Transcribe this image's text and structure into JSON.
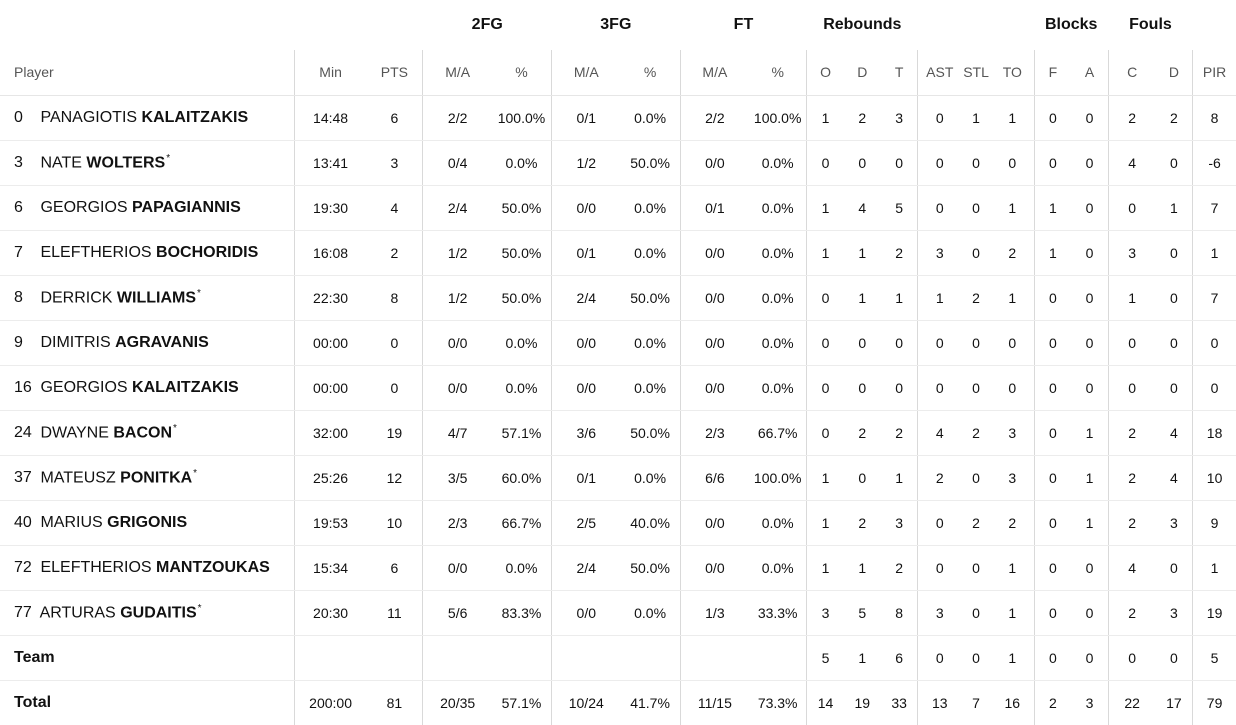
{
  "groups": {
    "fg2": "2FG",
    "fg3": "3FG",
    "ft": "FT",
    "rebounds": "Rebounds",
    "blocks": "Blocks",
    "fouls": "Fouls"
  },
  "headers": {
    "player": "Player",
    "min": "Min",
    "pts": "PTS",
    "fg2_ma": "M/A",
    "fg2_pct": "%",
    "fg3_ma": "M/A",
    "fg3_pct": "%",
    "ft_ma": "M/A",
    "ft_pct": "%",
    "reb_o": "O",
    "reb_d": "D",
    "reb_t": "T",
    "ast": "AST",
    "stl": "STL",
    "to": "TO",
    "blk_f": "F",
    "blk_a": "A",
    "foul_c": "C",
    "foul_d": "D",
    "pir": "PIR"
  },
  "players": [
    {
      "num": "0",
      "first": "PANAGIOTIS",
      "last": "KALAITZAKIS",
      "star": "",
      "min": "14:48",
      "pts": "6",
      "fg2_ma": "2/2",
      "fg2_pct": "100.0%",
      "fg3_ma": "0/1",
      "fg3_pct": "0.0%",
      "ft_ma": "2/2",
      "ft_pct": "100.0%",
      "o": "1",
      "d": "2",
      "t": "3",
      "ast": "0",
      "stl": "1",
      "to": "1",
      "bf": "0",
      "ba": "0",
      "fc": "2",
      "fd": "2",
      "pir": "8"
    },
    {
      "num": "3",
      "first": "NATE",
      "last": "WOLTERS",
      "star": "*",
      "min": "13:41",
      "pts": "3",
      "fg2_ma": "0/4",
      "fg2_pct": "0.0%",
      "fg3_ma": "1/2",
      "fg3_pct": "50.0%",
      "ft_ma": "0/0",
      "ft_pct": "0.0%",
      "o": "0",
      "d": "0",
      "t": "0",
      "ast": "0",
      "stl": "0",
      "to": "0",
      "bf": "0",
      "ba": "0",
      "fc": "4",
      "fd": "0",
      "pir": "-6"
    },
    {
      "num": "6",
      "first": "GEORGIOS",
      "last": "PAPAGIANNIS",
      "star": "",
      "min": "19:30",
      "pts": "4",
      "fg2_ma": "2/4",
      "fg2_pct": "50.0%",
      "fg3_ma": "0/0",
      "fg3_pct": "0.0%",
      "ft_ma": "0/1",
      "ft_pct": "0.0%",
      "o": "1",
      "d": "4",
      "t": "5",
      "ast": "0",
      "stl": "0",
      "to": "1",
      "bf": "1",
      "ba": "0",
      "fc": "0",
      "fd": "1",
      "pir": "7"
    },
    {
      "num": "7",
      "first": "ELEFTHERIOS",
      "last": "BOCHORIDIS",
      "star": "",
      "min": "16:08",
      "pts": "2",
      "fg2_ma": "1/2",
      "fg2_pct": "50.0%",
      "fg3_ma": "0/1",
      "fg3_pct": "0.0%",
      "ft_ma": "0/0",
      "ft_pct": "0.0%",
      "o": "1",
      "d": "1",
      "t": "2",
      "ast": "3",
      "stl": "0",
      "to": "2",
      "bf": "1",
      "ba": "0",
      "fc": "3",
      "fd": "0",
      "pir": "1"
    },
    {
      "num": "8",
      "first": "DERRICK",
      "last": "WILLIAMS",
      "star": "*",
      "min": "22:30",
      "pts": "8",
      "fg2_ma": "1/2",
      "fg2_pct": "50.0%",
      "fg3_ma": "2/4",
      "fg3_pct": "50.0%",
      "ft_ma": "0/0",
      "ft_pct": "0.0%",
      "o": "0",
      "d": "1",
      "t": "1",
      "ast": "1",
      "stl": "2",
      "to": "1",
      "bf": "0",
      "ba": "0",
      "fc": "1",
      "fd": "0",
      "pir": "7"
    },
    {
      "num": "9",
      "first": "DIMITRIS",
      "last": "AGRAVANIS",
      "star": "",
      "min": "00:00",
      "pts": "0",
      "fg2_ma": "0/0",
      "fg2_pct": "0.0%",
      "fg3_ma": "0/0",
      "fg3_pct": "0.0%",
      "ft_ma": "0/0",
      "ft_pct": "0.0%",
      "o": "0",
      "d": "0",
      "t": "0",
      "ast": "0",
      "stl": "0",
      "to": "0",
      "bf": "0",
      "ba": "0",
      "fc": "0",
      "fd": "0",
      "pir": "0"
    },
    {
      "num": "16",
      "first": "GEORGIOS",
      "last": "KALAITZAKIS",
      "star": "",
      "min": "00:00",
      "pts": "0",
      "fg2_ma": "0/0",
      "fg2_pct": "0.0%",
      "fg3_ma": "0/0",
      "fg3_pct": "0.0%",
      "ft_ma": "0/0",
      "ft_pct": "0.0%",
      "o": "0",
      "d": "0",
      "t": "0",
      "ast": "0",
      "stl": "0",
      "to": "0",
      "bf": "0",
      "ba": "0",
      "fc": "0",
      "fd": "0",
      "pir": "0"
    },
    {
      "num": "24",
      "first": "DWAYNE",
      "last": "BACON",
      "star": "*",
      "min": "32:00",
      "pts": "19",
      "fg2_ma": "4/7",
      "fg2_pct": "57.1%",
      "fg3_ma": "3/6",
      "fg3_pct": "50.0%",
      "ft_ma": "2/3",
      "ft_pct": "66.7%",
      "o": "0",
      "d": "2",
      "t": "2",
      "ast": "4",
      "stl": "2",
      "to": "3",
      "bf": "0",
      "ba": "1",
      "fc": "2",
      "fd": "4",
      "pir": "18"
    },
    {
      "num": "37",
      "first": "MATEUSZ",
      "last": "PONITKA",
      "star": "*",
      "min": "25:26",
      "pts": "12",
      "fg2_ma": "3/5",
      "fg2_pct": "60.0%",
      "fg3_ma": "0/1",
      "fg3_pct": "0.0%",
      "ft_ma": "6/6",
      "ft_pct": "100.0%",
      "o": "1",
      "d": "0",
      "t": "1",
      "ast": "2",
      "stl": "0",
      "to": "3",
      "bf": "0",
      "ba": "1",
      "fc": "2",
      "fd": "4",
      "pir": "10"
    },
    {
      "num": "40",
      "first": "MARIUS",
      "last": "GRIGONIS",
      "star": "",
      "min": "19:53",
      "pts": "10",
      "fg2_ma": "2/3",
      "fg2_pct": "66.7%",
      "fg3_ma": "2/5",
      "fg3_pct": "40.0%",
      "ft_ma": "0/0",
      "ft_pct": "0.0%",
      "o": "1",
      "d": "2",
      "t": "3",
      "ast": "0",
      "stl": "2",
      "to": "2",
      "bf": "0",
      "ba": "1",
      "fc": "2",
      "fd": "3",
      "pir": "9"
    },
    {
      "num": "72",
      "first": "ELEFTHERIOS",
      "last": "MANTZOUKAS",
      "star": "",
      "min": "15:34",
      "pts": "6",
      "fg2_ma": "0/0",
      "fg2_pct": "0.0%",
      "fg3_ma": "2/4",
      "fg3_pct": "50.0%",
      "ft_ma": "0/0",
      "ft_pct": "0.0%",
      "o": "1",
      "d": "1",
      "t": "2",
      "ast": "0",
      "stl": "0",
      "to": "1",
      "bf": "0",
      "ba": "0",
      "fc": "4",
      "fd": "0",
      "pir": "1"
    },
    {
      "num": "77",
      "first": "ARTURAS",
      "last": "GUDAITIS",
      "star": "*",
      "min": "20:30",
      "pts": "11",
      "fg2_ma": "5/6",
      "fg2_pct": "83.3%",
      "fg3_ma": "0/0",
      "fg3_pct": "0.0%",
      "ft_ma": "1/3",
      "ft_pct": "33.3%",
      "o": "3",
      "d": "5",
      "t": "8",
      "ast": "3",
      "stl": "0",
      "to": "1",
      "bf": "0",
      "ba": "0",
      "fc": "2",
      "fd": "3",
      "pir": "19"
    }
  ],
  "team": {
    "label": "Team",
    "o": "5",
    "d": "1",
    "t": "6",
    "ast": "0",
    "stl": "0",
    "to": "1",
    "bf": "0",
    "ba": "0",
    "fc": "0",
    "fd": "0",
    "pir": "5"
  },
  "total": {
    "label": "Total",
    "min": "200:00",
    "pts": "81",
    "fg2_ma": "20/35",
    "fg2_pct": "57.1%",
    "fg3_ma": "10/24",
    "fg3_pct": "41.7%",
    "ft_ma": "11/15",
    "ft_pct": "73.3%",
    "o": "14",
    "d": "19",
    "t": "33",
    "ast": "13",
    "stl": "7",
    "to": "16",
    "bf": "2",
    "ba": "3",
    "fc": "22",
    "fd": "17",
    "pir": "79"
  }
}
